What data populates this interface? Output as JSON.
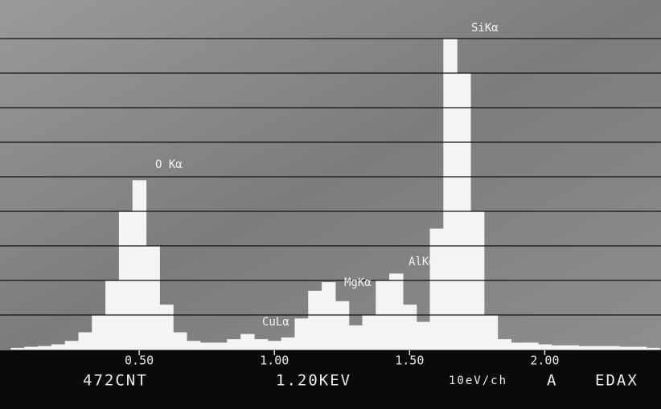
{
  "chart_data": {
    "type": "spectrum",
    "color": "#f4f4f4",
    "x": [
      0.05,
      0.1,
      0.15,
      0.2,
      0.25,
      0.3,
      0.35,
      0.4,
      0.45,
      0.5,
      0.55,
      0.6,
      0.65,
      0.7,
      0.75,
      0.8,
      0.85,
      0.9,
      0.95,
      1.0,
      1.05,
      1.1,
      1.15,
      1.2,
      1.25,
      1.3,
      1.35,
      1.4,
      1.45,
      1.5,
      1.55,
      1.6,
      1.65,
      1.7,
      1.75,
      1.8,
      1.85,
      1.9,
      1.95,
      2.0,
      2.05,
      2.1,
      2.15,
      2.2,
      2.25,
      2.3,
      2.35,
      2.4
    ],
    "values": [
      0.05,
      0.08,
      0.1,
      0.15,
      0.25,
      0.5,
      1.0,
      2.0,
      4.0,
      4.9,
      3.0,
      1.3,
      0.5,
      0.25,
      0.2,
      0.2,
      0.3,
      0.45,
      0.3,
      0.25,
      0.35,
      0.9,
      1.7,
      1.95,
      1.4,
      0.7,
      1.0,
      2.0,
      2.2,
      1.3,
      0.8,
      3.5,
      9.0,
      8.0,
      4.0,
      1.0,
      0.3,
      0.2,
      0.2,
      0.15,
      0.12,
      0.12,
      0.1,
      0.1,
      0.1,
      0.08,
      0.08,
      0.05
    ],
    "xlim": [
      0,
      2.43
    ],
    "ylim": [
      0,
      10
    ],
    "xticks": [
      {
        "value": 0.5,
        "label": "0.50"
      },
      {
        "value": 1.0,
        "label": "1.00"
      },
      {
        "value": 1.5,
        "label": "1.50"
      },
      {
        "value": 2.0,
        "label": "2.00"
      }
    ],
    "gridlines": [
      1,
      2,
      3,
      4,
      5,
      6,
      7,
      8,
      9
    ],
    "annotations": [
      "O Kα",
      "CuLα",
      "MgKα",
      "AlKα",
      "SiKα"
    ],
    "status": [
      "472CNT",
      "1.20KEV",
      "10eV/ch",
      "A",
      "EDAX"
    ]
  }
}
